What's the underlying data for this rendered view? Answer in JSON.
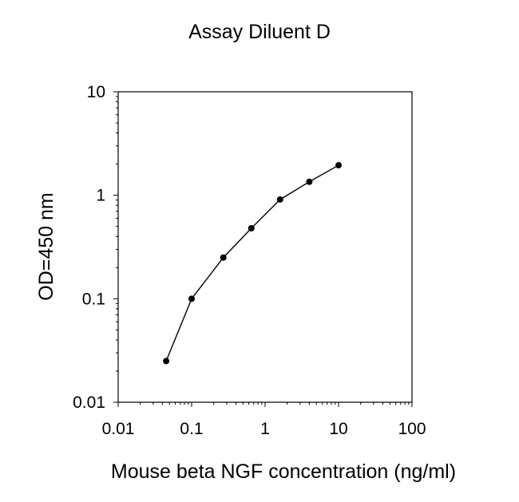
{
  "chart_data": {
    "type": "line",
    "title": "Assay Diluent D",
    "xlabel": "Mouse beta NGF concentration (ng/ml)",
    "ylabel": "OD=450 nm",
    "x_scale": "log",
    "y_scale": "log",
    "xlim": [
      0.01,
      100
    ],
    "ylim": [
      0.01,
      10
    ],
    "x_ticks": [
      "0.01",
      "0.1",
      "1",
      "10",
      "100"
    ],
    "y_ticks": [
      "0.01",
      "0.1",
      "1",
      "10"
    ],
    "grid": false,
    "series": [
      {
        "x": [
          0.045,
          0.1,
          0.27,
          0.65,
          1.6,
          4.0,
          10.0
        ],
        "y": [
          0.025,
          0.1,
          0.25,
          0.48,
          0.91,
          1.35,
          1.95
        ]
      }
    ],
    "colors": {
      "line": "#000000",
      "marker": "#000000",
      "axis": "#000000"
    }
  }
}
